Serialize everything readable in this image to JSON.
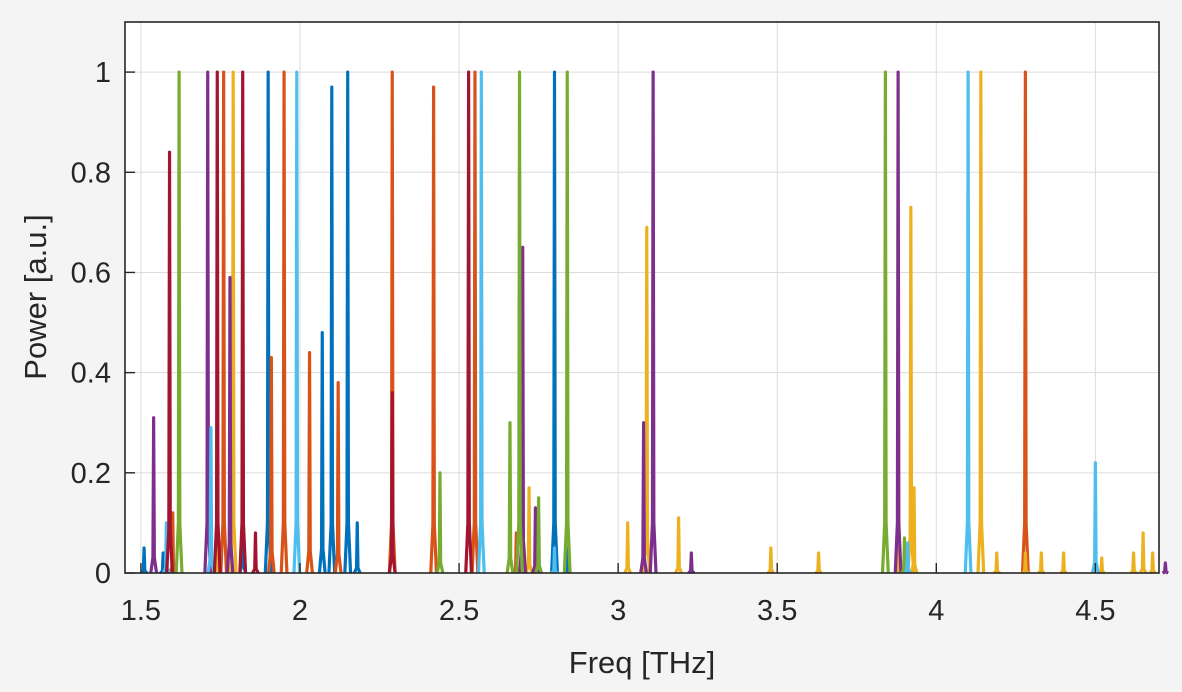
{
  "chart_data": {
    "type": "line",
    "title": "",
    "xlabel": "Freq [THz]",
    "ylabel": "Power [a.u.]",
    "xlim": [
      1.45,
      4.7
    ],
    "ylim": [
      0,
      1.1
    ],
    "grid": true,
    "legend": "none",
    "x_ticks": [
      1.5,
      2,
      2.5,
      3,
      3.5,
      4,
      4.5
    ],
    "x_tick_labels": [
      "1.5",
      "2",
      "2.5",
      "3",
      "3.5",
      "4",
      "4.5"
    ],
    "y_ticks": [
      0,
      0.2,
      0.4,
      0.6,
      0.8,
      1
    ],
    "y_tick_labels": [
      "0",
      "0.2",
      "0.4",
      "0.6",
      "0.8",
      "1"
    ],
    "series": [
      {
        "color": "#0072BD",
        "peaks": [
          [
            1.51,
            0.05
          ],
          [
            1.57,
            0.04
          ],
          [
            1.82,
            0.17
          ],
          [
            1.9,
            1.0
          ],
          [
            2.07,
            0.48
          ],
          [
            2.1,
            0.97
          ],
          [
            2.15,
            1.0
          ],
          [
            2.18,
            0.1
          ],
          [
            2.8,
            1.0
          ],
          [
            2.84,
            0.05
          ]
        ]
      },
      {
        "color": "#D95319",
        "peaks": [
          [
            1.6,
            0.12
          ],
          [
            1.76,
            1.0
          ],
          [
            1.91,
            0.43
          ],
          [
            1.95,
            1.0
          ],
          [
            2.03,
            0.44
          ],
          [
            2.12,
            0.38
          ],
          [
            2.29,
            1.0
          ],
          [
            2.42,
            0.97
          ],
          [
            2.55,
            1.0
          ],
          [
            2.68,
            0.08
          ],
          [
            4.28,
            1.0
          ]
        ]
      },
      {
        "color": "#EDB120",
        "peaks": [
          [
            1.74,
            0.07
          ],
          [
            1.79,
            1.0
          ],
          [
            2.72,
            0.17
          ],
          [
            3.03,
            0.1
          ],
          [
            3.09,
            0.69
          ],
          [
            3.19,
            0.11
          ],
          [
            3.48,
            0.05
          ],
          [
            3.63,
            0.04
          ],
          [
            3.88,
            0.05
          ],
          [
            3.92,
            0.73
          ],
          [
            3.93,
            0.17
          ],
          [
            4.14,
            1.0
          ],
          [
            4.19,
            0.04
          ],
          [
            4.28,
            0.04
          ],
          [
            4.33,
            0.04
          ],
          [
            4.4,
            0.04
          ],
          [
            4.52,
            0.03
          ],
          [
            4.62,
            0.04
          ],
          [
            4.65,
            0.08
          ],
          [
            4.68,
            0.04
          ]
        ]
      },
      {
        "color": "#7E2F8E",
        "peaks": [
          [
            1.54,
            0.31
          ],
          [
            1.71,
            1.0
          ],
          [
            1.78,
            0.59
          ],
          [
            2.7,
            0.65
          ],
          [
            2.74,
            0.13
          ],
          [
            3.08,
            0.3
          ],
          [
            3.11,
            1.0
          ],
          [
            3.23,
            0.04
          ],
          [
            3.88,
            1.0
          ],
          [
            4.72,
            0.02
          ]
        ]
      },
      {
        "color": "#77AC30",
        "peaks": [
          [
            1.62,
            1.0
          ],
          [
            2.44,
            0.2
          ],
          [
            2.66,
            0.3
          ],
          [
            2.69,
            1.0
          ],
          [
            2.75,
            0.15
          ],
          [
            2.84,
            1.0
          ],
          [
            3.84,
            1.0
          ],
          [
            3.9,
            0.07
          ]
        ]
      },
      {
        "color": "#4DBEEE",
        "peaks": [
          [
            1.58,
            0.1
          ],
          [
            1.72,
            0.29
          ],
          [
            1.99,
            1.0
          ],
          [
            2.57,
            1.0
          ],
          [
            2.8,
            0.05
          ],
          [
            3.91,
            0.06
          ],
          [
            4.1,
            1.0
          ],
          [
            4.5,
            0.22
          ]
        ]
      },
      {
        "color": "#A2142F",
        "peaks": [
          [
            1.59,
            0.84
          ],
          [
            1.74,
            1.0
          ],
          [
            1.82,
            1.0
          ],
          [
            1.86,
            0.08
          ],
          [
            2.29,
            0.36
          ],
          [
            2.53,
            1.0
          ]
        ]
      }
    ]
  }
}
